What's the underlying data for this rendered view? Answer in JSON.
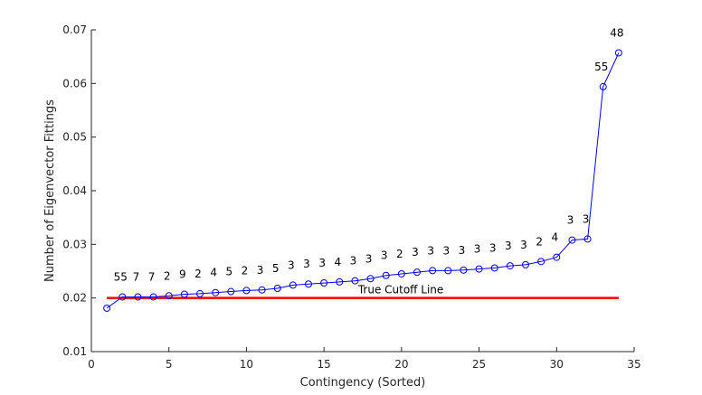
{
  "chart_data": {
    "type": "line",
    "xlabel": "Contingency (Sorted)",
    "ylabel": "Number of Eigenvector Fittings",
    "xlim": [
      0,
      35
    ],
    "ylim": [
      0.01,
      0.07
    ],
    "xticks": [
      0,
      5,
      10,
      15,
      20,
      25,
      30,
      35
    ],
    "yticks": [
      0.01,
      0.02,
      0.03,
      0.04,
      0.05,
      0.06,
      0.07
    ],
    "xtick_labels": [
      "0",
      "5",
      "10",
      "15",
      "20",
      "25",
      "30",
      "35"
    ],
    "ytick_labels": [
      "0.01",
      "0.02",
      "0.03",
      "0.04",
      "0.05",
      "0.06",
      "0.07"
    ],
    "grid": false,
    "series": [
      {
        "color": "#0000ff",
        "marker": "circle",
        "x": [
          1,
          2,
          3,
          4,
          5,
          6,
          7,
          8,
          9,
          10,
          11,
          12,
          13,
          14,
          15,
          16,
          17,
          18,
          19,
          20,
          21,
          22,
          23,
          24,
          25,
          26,
          27,
          28,
          29,
          30,
          31,
          32,
          33,
          34
        ],
        "y": [
          0.0181,
          0.0202,
          0.0202,
          0.0202,
          0.0204,
          0.0207,
          0.0208,
          0.021,
          0.0212,
          0.0214,
          0.0215,
          0.0218,
          0.0224,
          0.0226,
          0.0228,
          0.023,
          0.0232,
          0.0236,
          0.0242,
          0.0245,
          0.0248,
          0.0251,
          0.0251,
          0.0252,
          0.0254,
          0.0256,
          0.026,
          0.0262,
          0.0268,
          0.0276,
          0.0308,
          0.031,
          0.0594,
          0.0657
        ],
        "point_labels": [
          "",
          "55",
          "7",
          "7",
          "2",
          "9",
          "2",
          "4",
          "5",
          "2",
          "3",
          "5",
          "3",
          "3",
          "3",
          "4",
          "3",
          "3",
          "3",
          "2",
          "3",
          "3",
          "3",
          "3",
          "3",
          "3",
          "3",
          "3",
          "2",
          "4",
          "3",
          "3",
          "55",
          "48"
        ]
      }
    ],
    "cutoff_line": {
      "label": "True Cutoff Line",
      "y": 0.02,
      "x_start": 1,
      "x_end": 34,
      "color": "#ff0000"
    }
  }
}
